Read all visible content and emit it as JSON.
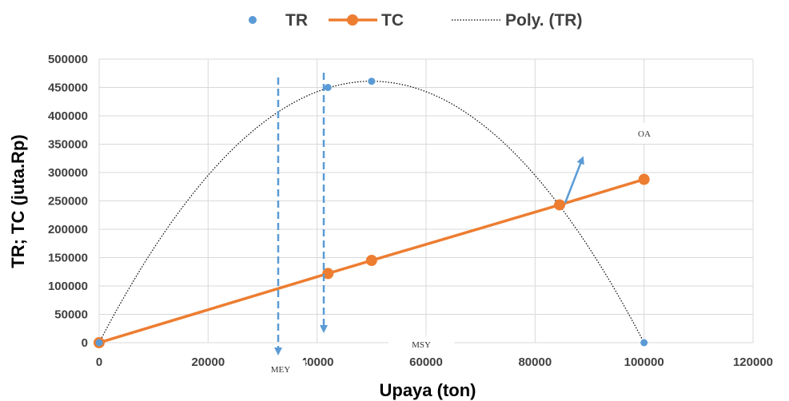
{
  "chart_data": {
    "type": "scatter",
    "xlabel": "Upaya (ton)",
    "ylabel": "TR; TC (juta.Rp)",
    "xlim": [
      0,
      120000
    ],
    "ylim": [
      0,
      500000
    ],
    "x_ticks": [
      "0",
      "20000",
      "40000",
      "60000",
      "80000",
      "100000",
      "120000"
    ],
    "y_ticks": [
      "0",
      "50000",
      "100000",
      "150000",
      "200000",
      "250000",
      "300000",
      "350000",
      "400000",
      "450000",
      "500000"
    ],
    "grid": true,
    "legend_position": "top",
    "series": [
      {
        "name": "TR",
        "type": "scatter",
        "color": "#5B9BD5",
        "x": [
          0,
          42000,
          50000,
          100000
        ],
        "y": [
          0,
          450000,
          461000,
          0
        ]
      },
      {
        "name": "TC",
        "type": "line",
        "color": "#ED7D31",
        "x": [
          0,
          42000,
          50000,
          84500,
          100000
        ],
        "y": [
          0,
          122000,
          145000,
          243000,
          288000
        ]
      },
      {
        "name": "Poly. (TR)",
        "type": "trendline",
        "color": "#000000",
        "polynomial": {
          "a": -0.0001844,
          "b": 18.44,
          "c": 0
        }
      }
    ],
    "annotations": [
      {
        "label": "MEY",
        "type": "dashed-arrow",
        "color": "#5B9BD5",
        "x": 32000
      },
      {
        "label": "MSY",
        "type": "dashed-arrow",
        "color": "#5B9BD5",
        "x": 40000
      },
      {
        "label": "OA",
        "type": "arrow",
        "color": "#5B9BD5",
        "x": 84500
      }
    ]
  }
}
